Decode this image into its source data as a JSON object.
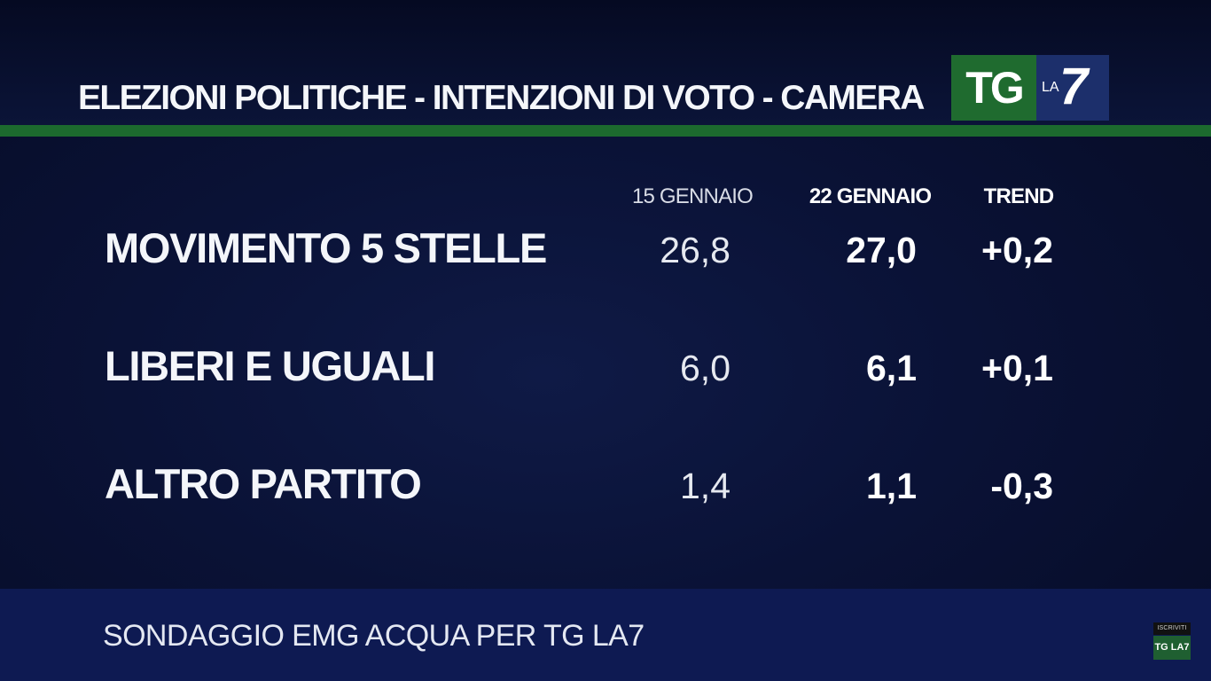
{
  "header": {
    "title": "ELEZIONI POLITICHE - INTENZIONI DI VOTO - CAMERA",
    "logo": {
      "tg": "TG",
      "la": "LA",
      "seven": "7"
    }
  },
  "footer": {
    "source": "SONDAGGIO EMG ACQUA PER TG LA7",
    "badge_subscribe": "ISCRIVITI",
    "badge_logo": "TG LA7"
  },
  "colors": {
    "background": "#0a1236",
    "green_rule": "#1c6a2e",
    "tg_green": "#1f6b2f",
    "la7_blue": "#1c2f6b",
    "footer_band": "#0e1a52",
    "text": "#f4f6fa"
  },
  "chart_data": {
    "type": "table",
    "title": "ELEZIONI POLITICHE - INTENZIONI DI VOTO - CAMERA",
    "columns": [
      "15 GENNAIO",
      "22 GENNAIO",
      "TREND"
    ],
    "rows": [
      {
        "party": "MOVIMENTO 5 STELLE",
        "jan15": "26,8",
        "jan22": "27,0",
        "trend": "+0,2"
      },
      {
        "party": "LIBERI E UGUALI",
        "jan15": "6,0",
        "jan22": "6,1",
        "trend": "+0,1"
      },
      {
        "party": "ALTRO PARTITO",
        "jan15": "1,4",
        "jan22": "1,1",
        "trend": "-0,3"
      }
    ]
  }
}
